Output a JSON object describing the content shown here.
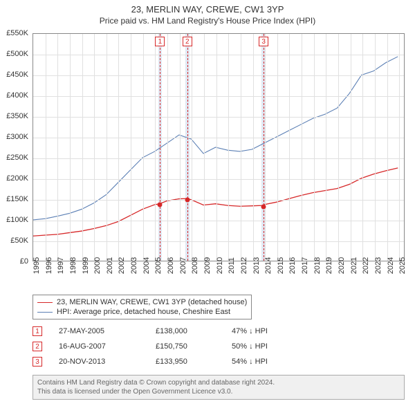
{
  "title": "23, MERLIN WAY, CREWE, CW1 3YP",
  "subtitle": "Price paid vs. HM Land Registry's House Price Index (HPI)",
  "chart": {
    "type": "line",
    "background_color": "#ffffff",
    "grid_color": "#e0e0e0",
    "border_color": "#888888",
    "band_color": "#e0e8f3",
    "x_start": 1995,
    "x_end": 2025.5,
    "xticks": [
      1995,
      1996,
      1997,
      1998,
      1999,
      2000,
      2001,
      2002,
      2003,
      2004,
      2005,
      2006,
      2007,
      2008,
      2009,
      2010,
      2011,
      2012,
      2013,
      2014,
      2015,
      2016,
      2017,
      2018,
      2019,
      2020,
      2021,
      2022,
      2023,
      2024,
      2025
    ],
    "ylim": [
      0,
      550000
    ],
    "yticks": [
      0,
      50000,
      100000,
      150000,
      200000,
      250000,
      300000,
      350000,
      400000,
      450000,
      500000,
      550000
    ],
    "yticklabels": [
      "£0",
      "£50K",
      "£100K",
      "£150K",
      "£200K",
      "£250K",
      "£300K",
      "£350K",
      "£400K",
      "£450K",
      "£500K",
      "£550K"
    ],
    "bands": [
      [
        2005.25,
        2005.55
      ],
      [
        2007.45,
        2007.8
      ],
      [
        2013.7,
        2014.05
      ]
    ],
    "markers_vlines_x": [
      2005.4,
      2007.63,
      2013.89
    ],
    "marker_color": "#d62728",
    "series": [
      {
        "name": "price_paid",
        "color": "#d62728",
        "line_width": 1.3,
        "data": [
          [
            1995,
            60000
          ],
          [
            1996,
            62000
          ],
          [
            1997,
            64000
          ],
          [
            1998,
            68000
          ],
          [
            1999,
            72000
          ],
          [
            2000,
            78000
          ],
          [
            2001,
            85000
          ],
          [
            2002,
            95000
          ],
          [
            2003,
            110000
          ],
          [
            2004,
            125000
          ],
          [
            2005,
            136000
          ],
          [
            2005.4,
            138000
          ],
          [
            2006,
            145000
          ],
          [
            2007,
            150000
          ],
          [
            2007.63,
            150750
          ],
          [
            2008,
            148000
          ],
          [
            2009,
            135000
          ],
          [
            2010,
            138000
          ],
          [
            2011,
            134000
          ],
          [
            2012,
            132000
          ],
          [
            2013,
            133000
          ],
          [
            2013.89,
            133950
          ],
          [
            2014,
            136000
          ],
          [
            2015,
            142000
          ],
          [
            2016,
            150000
          ],
          [
            2017,
            158000
          ],
          [
            2018,
            165000
          ],
          [
            2019,
            170000
          ],
          [
            2020,
            175000
          ],
          [
            2021,
            185000
          ],
          [
            2022,
            200000
          ],
          [
            2023,
            210000
          ],
          [
            2024,
            218000
          ],
          [
            2025,
            225000
          ]
        ],
        "points": [
          [
            2005.4,
            138000
          ],
          [
            2007.63,
            150750
          ],
          [
            2013.89,
            133950
          ]
        ]
      },
      {
        "name": "hpi",
        "color": "#5b7fb4",
        "line_width": 1.1,
        "data": [
          [
            1995,
            99000
          ],
          [
            1996,
            102000
          ],
          [
            1997,
            108000
          ],
          [
            1998,
            115000
          ],
          [
            1999,
            125000
          ],
          [
            2000,
            140000
          ],
          [
            2001,
            160000
          ],
          [
            2002,
            190000
          ],
          [
            2003,
            220000
          ],
          [
            2004,
            250000
          ],
          [
            2005,
            265000
          ],
          [
            2006,
            285000
          ],
          [
            2007,
            305000
          ],
          [
            2008,
            295000
          ],
          [
            2009,
            260000
          ],
          [
            2010,
            275000
          ],
          [
            2011,
            268000
          ],
          [
            2012,
            265000
          ],
          [
            2013,
            270000
          ],
          [
            2014,
            285000
          ],
          [
            2015,
            300000
          ],
          [
            2016,
            315000
          ],
          [
            2017,
            330000
          ],
          [
            2018,
            345000
          ],
          [
            2019,
            355000
          ],
          [
            2020,
            370000
          ],
          [
            2021,
            405000
          ],
          [
            2022,
            450000
          ],
          [
            2023,
            460000
          ],
          [
            2024,
            480000
          ],
          [
            2025,
            495000
          ]
        ]
      }
    ]
  },
  "legend": {
    "items": [
      {
        "color": "#d62728",
        "label": "23, MERLIN WAY, CREWE, CW1 3YP (detached house)"
      },
      {
        "color": "#5b7fb4",
        "label": "HPI: Average price, detached house, Cheshire East"
      }
    ]
  },
  "sales": [
    {
      "n": "1",
      "date": "27-MAY-2005",
      "price": "£138,000",
      "pct": "47% ↓ HPI"
    },
    {
      "n": "2",
      "date": "16-AUG-2007",
      "price": "£150,750",
      "pct": "50% ↓ HPI"
    },
    {
      "n": "3",
      "date": "20-NOV-2013",
      "price": "£133,950",
      "pct": "54% ↓ HPI"
    }
  ],
  "footer": {
    "line1": "Contains HM Land Registry data © Crown copyright and database right 2024.",
    "line2": "This data is licensed under the Open Government Licence v3.0."
  }
}
